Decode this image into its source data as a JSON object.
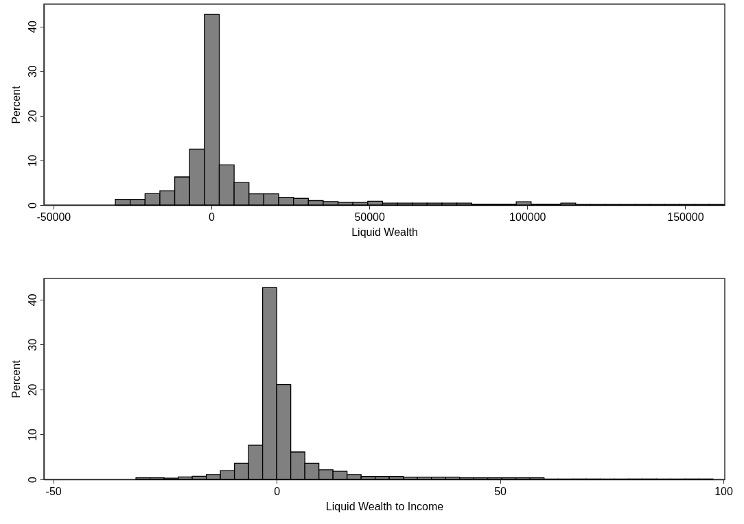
{
  "chart_data": [
    {
      "type": "histogram",
      "xlabel": "Liquid Wealth",
      "ylabel": "Percent",
      "color": "#808080",
      "bins": [
        -30400,
        -25700,
        -21000,
        -16300,
        -11600,
        -6900,
        -2200,
        2500,
        7200,
        11900,
        16600,
        21300,
        26000,
        30700,
        35400,
        40100,
        44800,
        49500,
        54200,
        58900,
        63600,
        68300,
        73000,
        77700,
        82400,
        87100,
        91800,
        96500,
        101200,
        105900,
        110600,
        115300,
        120000,
        124700,
        129400,
        134100,
        138800,
        143500,
        148200,
        152900,
        157600,
        162300
      ],
      "values": [
        1.3,
        1.3,
        2.55,
        3.2,
        6.3,
        12.55,
        42.7,
        9.0,
        5.05,
        2.5,
        2.5,
        1.75,
        1.5,
        1.0,
        0.8,
        0.6,
        0.6,
        0.85,
        0.45,
        0.45,
        0.45,
        0.45,
        0.45,
        0.45,
        0.2,
        0.2,
        0.2,
        0.75,
        0.2,
        0.2,
        0.45,
        0.15,
        0.15,
        0.15,
        0.15,
        0.15,
        0.15,
        0.15,
        0.15,
        0.15,
        0.15
      ],
      "xlim": [
        -53000,
        162500
      ],
      "xticks": [
        -50000,
        0,
        50000,
        100000,
        150000
      ],
      "ylim": [
        0,
        45
      ],
      "yticks": [
        0,
        10,
        20,
        30,
        40
      ]
    },
    {
      "type": "histogram",
      "xlabel": "Liquid Wealth to Income",
      "ylabel": "Percent",
      "color": "#808080",
      "bins": [
        -31.5,
        -28.35,
        -25.2,
        -22.05,
        -18.9,
        -15.75,
        -12.6,
        -9.45,
        -6.3,
        -3.15,
        0,
        3.15,
        6.3,
        9.45,
        12.6,
        15.75,
        18.9,
        22.05,
        25.2,
        28.35,
        31.5,
        34.65,
        37.8,
        40.95,
        44.1,
        47.25,
        50.4,
        53.55,
        56.7,
        59.85,
        63,
        66.15,
        69.3,
        72.45,
        75.6,
        78.75,
        81.9,
        85.05,
        88.2,
        91.35,
        94.5,
        97.65
      ],
      "values": [
        0.35,
        0.35,
        0.3,
        0.55,
        0.7,
        1.1,
        1.95,
        3.6,
        7.6,
        42.65,
        21.1,
        6.1,
        3.6,
        2.15,
        1.8,
        1.1,
        0.65,
        0.65,
        0.65,
        0.5,
        0.5,
        0.5,
        0.5,
        0.35,
        0.35,
        0.35,
        0.35,
        0.35,
        0.35,
        0.1,
        0.1,
        0.1,
        0.1,
        0.1,
        0.1,
        0.1,
        0.1,
        0.1,
        0.1,
        0.1,
        0.1
      ],
      "xlim": [
        -52.1,
        100.3
      ],
      "xticks": [
        -50,
        0,
        50,
        100
      ],
      "ylim": [
        0,
        44.7
      ],
      "yticks": [
        0,
        10,
        20,
        30,
        40
      ]
    }
  ]
}
